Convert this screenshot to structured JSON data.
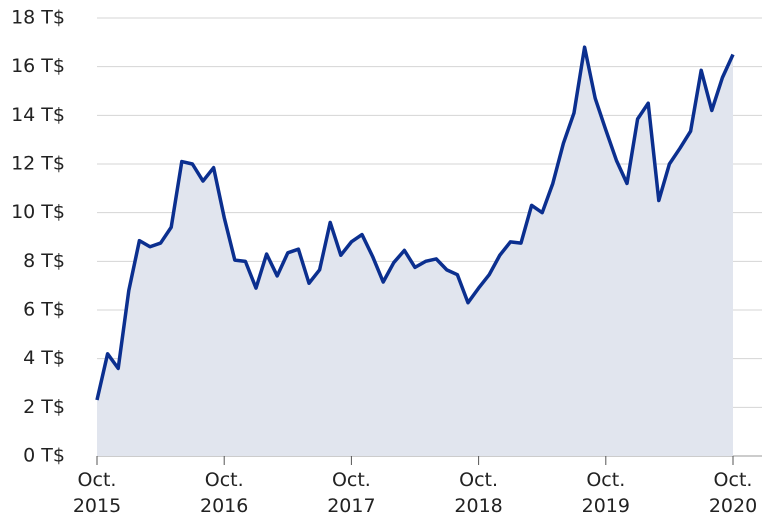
{
  "chart_data": {
    "type": "area",
    "categories": [
      "Oct. 2015",
      null,
      null,
      null,
      null,
      null,
      null,
      null,
      null,
      null,
      null,
      null,
      "Oct. 2016",
      null,
      null,
      null,
      null,
      null,
      null,
      null,
      null,
      null,
      null,
      null,
      "Oct. 2017",
      null,
      null,
      null,
      null,
      null,
      null,
      null,
      null,
      null,
      null,
      null,
      "Oct. 2018",
      null,
      null,
      null,
      null,
      null,
      null,
      null,
      null,
      null,
      null,
      null,
      "Oct. 2019",
      null,
      null,
      null,
      null,
      null,
      null,
      null,
      null,
      null,
      null,
      null,
      "Oct. 2020"
    ],
    "values": [
      2.3,
      4.2,
      3.6,
      6.8,
      8.85,
      8.6,
      8.75,
      9.4,
      12.1,
      12.0,
      11.3,
      11.85,
      9.8,
      8.05,
      8.0,
      6.9,
      8.3,
      7.4,
      8.35,
      8.5,
      7.1,
      7.65,
      9.6,
      8.25,
      8.8,
      9.1,
      8.2,
      7.15,
      7.95,
      8.45,
      7.75,
      8.0,
      8.1,
      7.65,
      7.45,
      6.3,
      6.9,
      7.45,
      8.25,
      8.8,
      8.75,
      10.3,
      10.0,
      11.2,
      12.85,
      14.1,
      16.8,
      14.7,
      13.4,
      12.15,
      11.2,
      13.85,
      14.5,
      10.5,
      12.0,
      12.65,
      13.35,
      15.85,
      14.2,
      15.55,
      16.5
    ],
    "color": "#0b2f8f",
    "fill_color": "#e1e5ee",
    "ylim": [
      0,
      18
    ],
    "yticks": [
      {
        "value": 0,
        "label": "0 T$"
      },
      {
        "value": 2,
        "label": "2 T$"
      },
      {
        "value": 4,
        "label": "4 T$"
      },
      {
        "value": 6,
        "label": "6 T$"
      },
      {
        "value": 8,
        "label": "8 T$"
      },
      {
        "value": 10,
        "label": "10 T$"
      },
      {
        "value": 12,
        "label": "12 T$"
      },
      {
        "value": 14,
        "label": "14 T$"
      },
      {
        "value": 16,
        "label": "16 T$"
      },
      {
        "value": 18,
        "label": "18 T$"
      }
    ],
    "grid": true
  }
}
